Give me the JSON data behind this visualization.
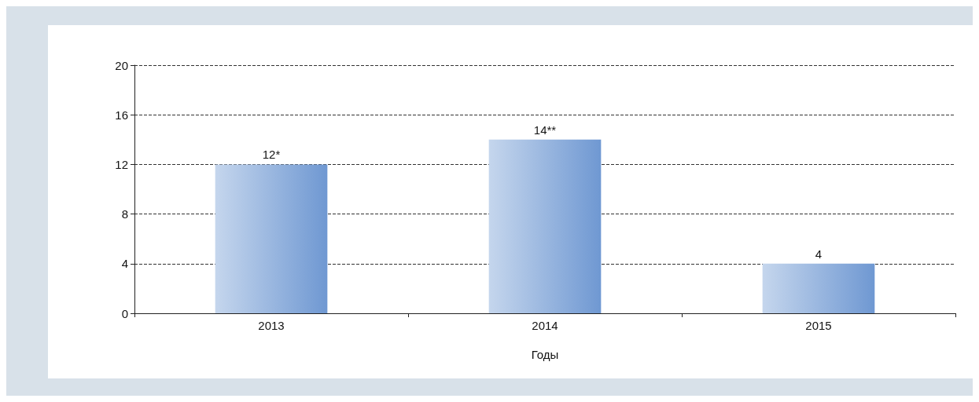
{
  "chart_data": {
    "type": "bar",
    "xlabel": "Годы",
    "categories": [
      "2013",
      "2014",
      "2015"
    ],
    "values": [
      12,
      14,
      4
    ],
    "value_labels": [
      "12*",
      "14**",
      "4"
    ],
    "color": "#6f98d2",
    "ylim": [
      0,
      20
    ],
    "yticks": [
      0,
      4,
      8,
      12,
      16,
      20
    ],
    "grid": "y"
  }
}
